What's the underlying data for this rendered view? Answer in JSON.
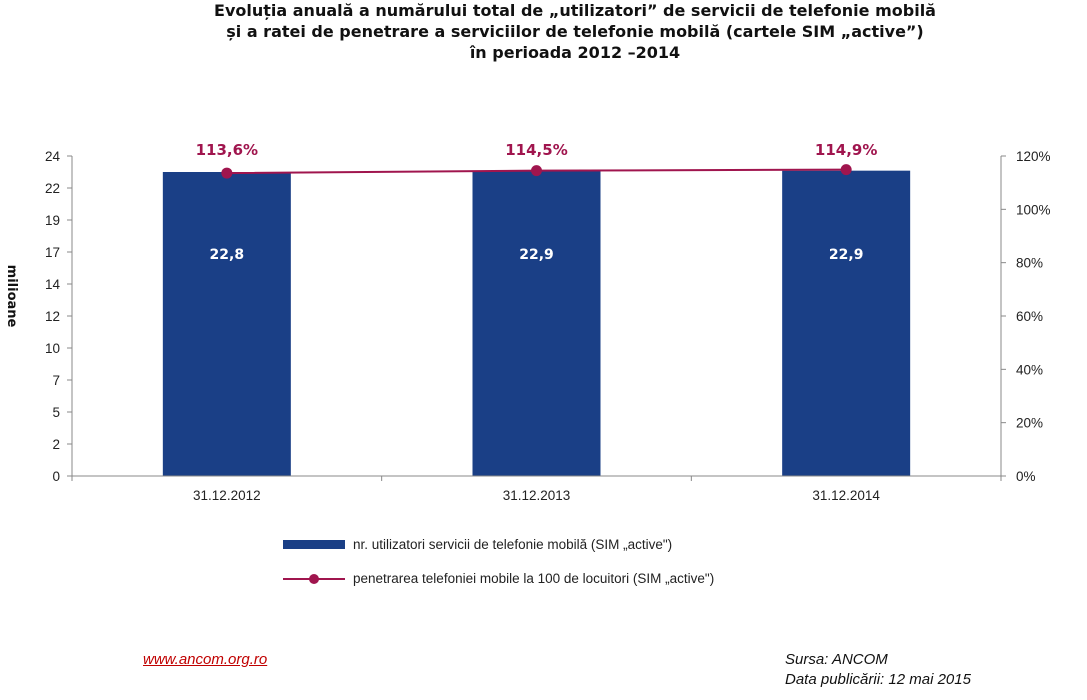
{
  "title_lines": [
    "Evoluția anuală a numărului total de „utilizatori” de servicii de telefonie mobilă",
    "și a ratei de penetrare a serviciilor de telefonie mobilă (cartele SIM „active”)",
    "în perioada 2012 –2014"
  ],
  "chart_data": {
    "type": "bar",
    "categories": [
      "31.12.2012",
      "31.12.2013",
      "31.12.2014"
    ],
    "series": [
      {
        "name": "nr. utilizatori servicii de telefonie mobilă (SIM „active\")",
        "type": "bar",
        "axis": "left",
        "values": [
          22.8,
          22.9,
          22.9
        ],
        "labels": [
          "22,8",
          "22,9",
          "22,9"
        ],
        "color": "#1a3f86"
      },
      {
        "name": "penetrarea telefoniei mobile la 100 de locuitori (SIM „active\")",
        "type": "line",
        "axis": "right",
        "values": [
          113.6,
          114.5,
          114.9
        ],
        "labels": [
          "113,6%",
          "114,5%",
          "114,9%"
        ],
        "color": "#a0154e"
      }
    ],
    "ylabel": "milioane",
    "ylim": [
      0,
      24
    ],
    "yticks": [
      "0",
      "2",
      "5",
      "7",
      "10",
      "12",
      "14",
      "17",
      "19",
      "22",
      "24"
    ],
    "y2lim": [
      0,
      120
    ],
    "y2ticks": [
      "0%",
      "20%",
      "40%",
      "60%",
      "80%",
      "100%",
      "120%"
    ],
    "grid": false,
    "legend_position": "bottom"
  },
  "footer": {
    "link": "www.ancom.org.ro",
    "source": "Sursa: ANCOM",
    "published": "Data publicării: 12 mai 2015"
  }
}
